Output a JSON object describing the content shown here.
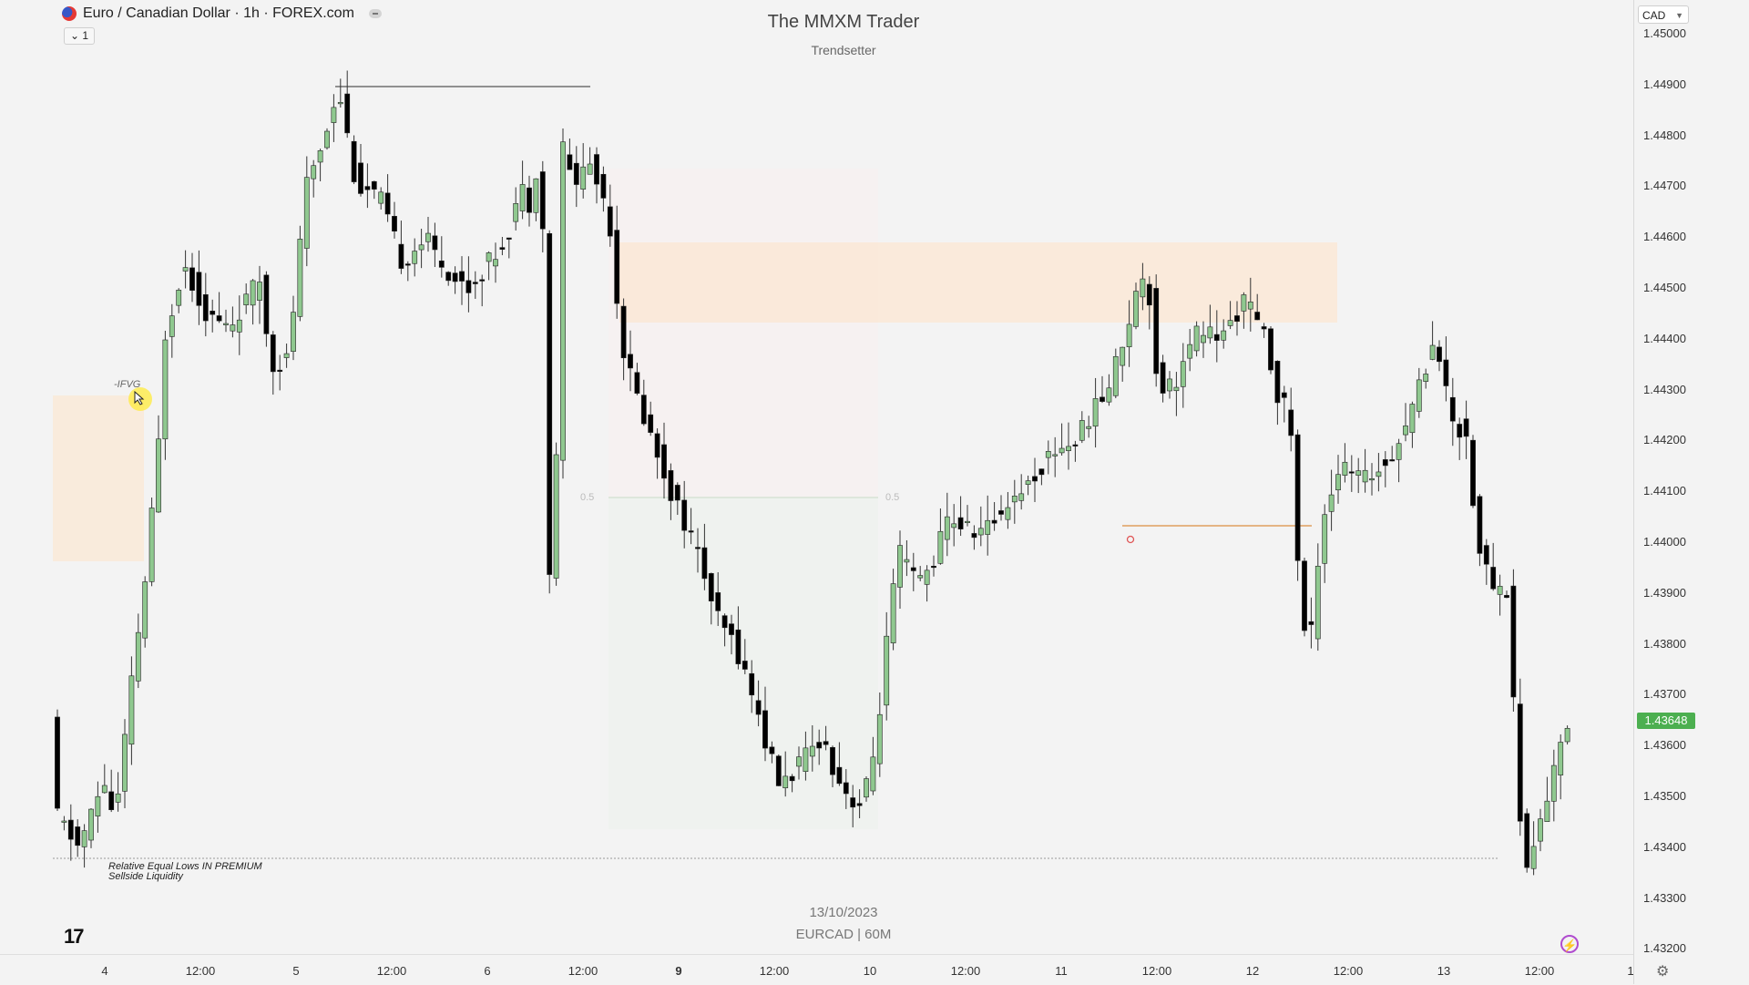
{
  "header": {
    "symbol_title": "Euro / Canadian Dollar · 1h · FOREX.com",
    "interval_toggle": "1",
    "chart_title": "The MMXM Trader",
    "chart_subtitle": "Trendsetter"
  },
  "watermark": {
    "date": "13/10/2023",
    "symbol": "EURCAD | 60M"
  },
  "annotations": {
    "fvg_label": "-IFVG",
    "liquidity_line1": "Relative Equal Lows IN PREMIUM",
    "liquidity_line2": "Sellside Liquidity",
    "fib_label": "0.5"
  },
  "price_axis": {
    "currency": "CAD",
    "ticks": [
      "1.45000",
      "1.44900",
      "1.44800",
      "1.44700",
      "1.44600",
      "1.44500",
      "1.44400",
      "1.44300",
      "1.44200",
      "1.44100",
      "1.44000",
      "1.43900",
      "1.43800",
      "1.43700",
      "1.43600",
      "1.43500",
      "1.43400",
      "1.43300",
      "1.43200"
    ],
    "current_price": "1.43648"
  },
  "time_axis": {
    "ticks": [
      {
        "label": "4",
        "bold": false
      },
      {
        "label": "12:00",
        "bold": false
      },
      {
        "label": "5",
        "bold": false
      },
      {
        "label": "12:00",
        "bold": false
      },
      {
        "label": "6",
        "bold": false
      },
      {
        "label": "12:00",
        "bold": false
      },
      {
        "label": "9",
        "bold": true
      },
      {
        "label": "12:00",
        "bold": false
      },
      {
        "label": "10",
        "bold": false
      },
      {
        "label": "12:00",
        "bold": false
      },
      {
        "label": "11",
        "bold": false
      },
      {
        "label": "12:00",
        "bold": false
      },
      {
        "label": "12",
        "bold": false
      },
      {
        "label": "12:00",
        "bold": false
      },
      {
        "label": "13",
        "bold": false
      },
      {
        "label": "12:00",
        "bold": false
      },
      {
        "label": "1",
        "bold": false
      }
    ]
  },
  "colors": {
    "bull": "#8fc88f",
    "bear": "#000000",
    "wick": "#333333",
    "premium_zone": "#fae8d6",
    "current_price": "#4caf50",
    "swing_line": "#e0a060",
    "liquidity_line": "#9a9a9a"
  },
  "chart_data": {
    "type": "candlestick",
    "symbol": "EURCAD",
    "ylim": [
      1.4317,
      1.4506
    ],
    "key_points": [
      {
        "x": "Oct 4 open",
        "close": 1.4347
      },
      {
        "x": "Oct 5 early",
        "close": 1.4441
      },
      {
        "x": "Oct 6 09:00",
        "high": 1.4497
      },
      {
        "x": "Oct 6 10:00",
        "low": 1.4378
      },
      {
        "x": "Oct 9 18:00",
        "low": 1.4344
      },
      {
        "x": "Oct 11 10:00",
        "high": 1.4455
      },
      {
        "x": "Oct 12 13:00",
        "low": 1.4377
      },
      {
        "x": "Oct 13 03:00",
        "high": 1.4441
      },
      {
        "x": "Oct 13 10:00",
        "low": 1.433
      },
      {
        "x": "Oct 13 last",
        "close": 1.43648
      }
    ]
  }
}
